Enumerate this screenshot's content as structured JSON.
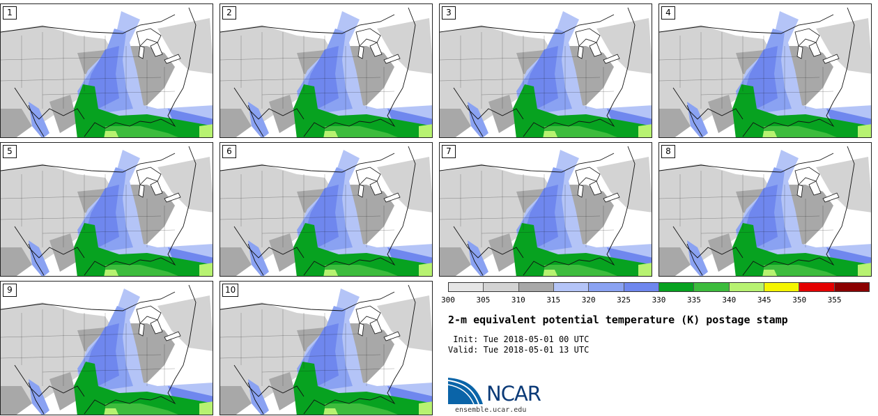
{
  "colors": {
    "c300": "#e6e6e6",
    "c305": "#d3d3d3",
    "c310": "#a8a8a8",
    "c315": "#b4c4f7",
    "c320": "#8aa2f2",
    "c325": "#6f87ee",
    "c330": "#07a220",
    "c335": "#3dbc3d",
    "c340": "#b7f271",
    "c345": "#f5f500",
    "c350": "#e40000",
    "c355": "#8b0000",
    "border": "#111111"
  },
  "stamps": [
    "1",
    "2",
    "3",
    "4",
    "5",
    "6",
    "7",
    "8",
    "9",
    "10"
  ],
  "colorbar": {
    "ticks": [
      "300",
      "305",
      "310",
      "315",
      "320",
      "325",
      "330",
      "335",
      "340",
      "345",
      "350",
      "355"
    ],
    "bins": [
      "#e6e6e6",
      "#d3d3d3",
      "#a8a8a8",
      "#b4c4f7",
      "#8aa2f2",
      "#6f87ee",
      "#07a220",
      "#3dbc3d",
      "#b7f271",
      "#f5f500",
      "#e40000",
      "#8b0000"
    ]
  },
  "title": "2-m equivalent potential temperature (K) postage stamp",
  "init": " Init: Tue 2018-05-01 00 UTC",
  "valid": "Valid: Tue 2018-05-01 13 UTC",
  "logo": {
    "name": "NCAR",
    "url": "ensemble.ucar.edu"
  }
}
